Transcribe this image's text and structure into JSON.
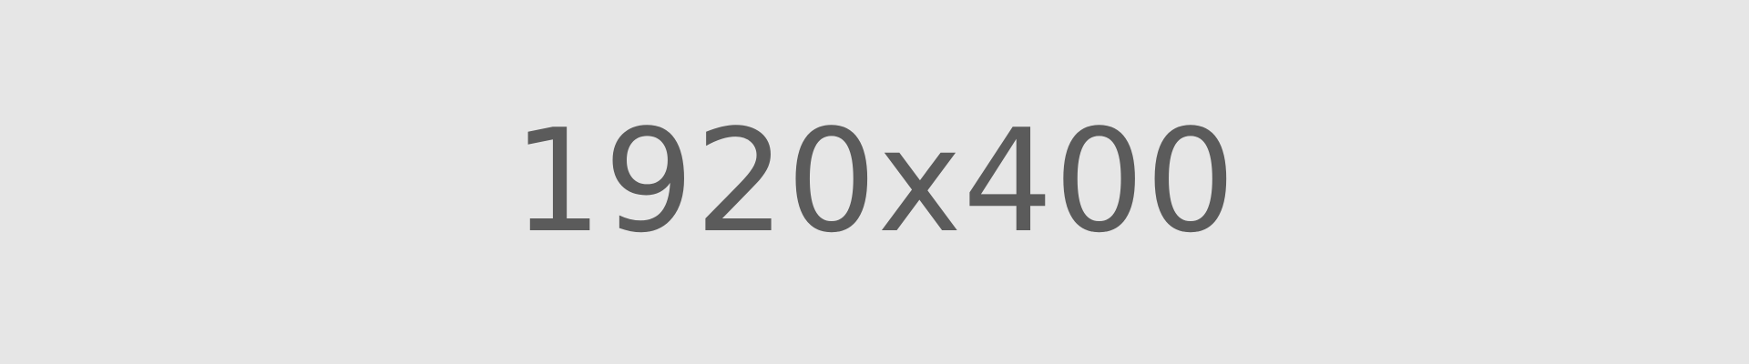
{
  "placeholder": {
    "label": "1920x400",
    "background_color": "#e6e6e6",
    "text_color": "#5b5b5b"
  }
}
